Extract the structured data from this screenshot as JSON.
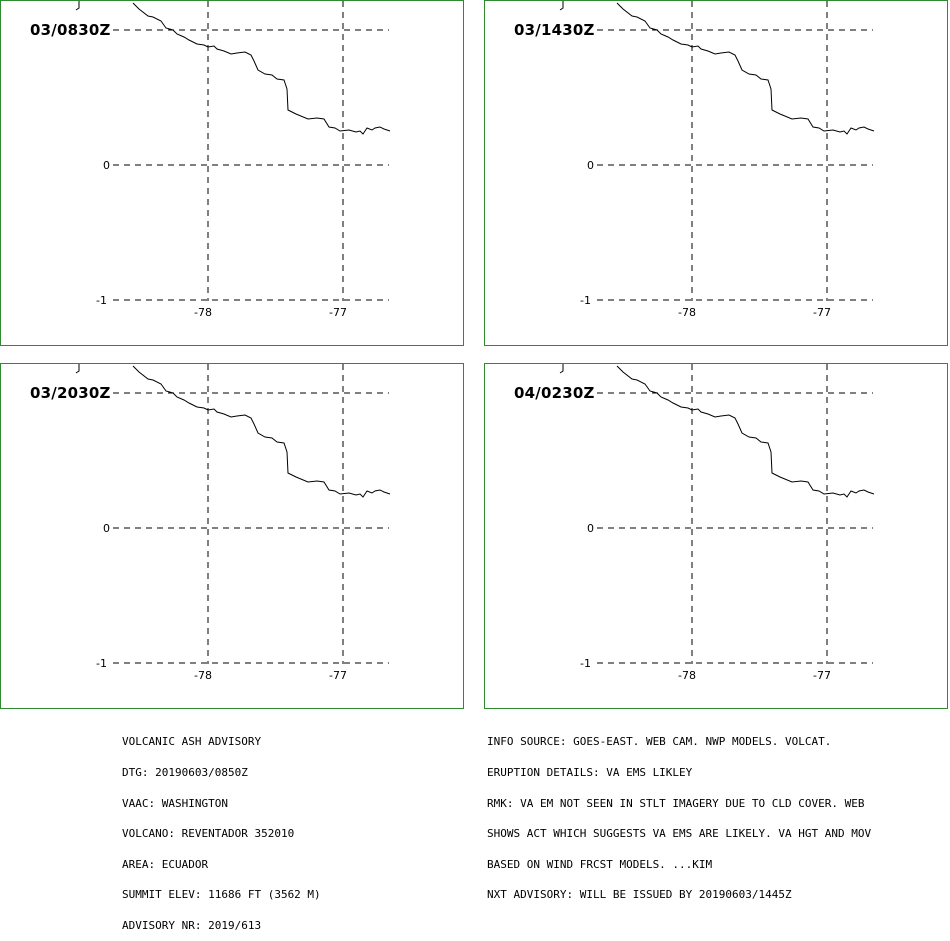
{
  "panels": [
    {
      "valid_time": "03/0830Z",
      "lat_labels": [
        "0",
        "-1"
      ],
      "lon_labels": [
        "-78",
        "-77"
      ]
    },
    {
      "valid_time": "03/1430Z",
      "lat_labels": [
        "0",
        "-1"
      ],
      "lon_labels": [
        "-78",
        "-77"
      ]
    },
    {
      "valid_time": "03/2030Z",
      "lat_labels": [
        "0",
        "-1"
      ],
      "lon_labels": [
        "-78",
        "-77"
      ]
    },
    {
      "valid_time": "04/0230Z",
      "lat_labels": [
        "0",
        "-1"
      ],
      "lon_labels": [
        "-78",
        "-77"
      ]
    }
  ],
  "map": {
    "graticule_lat": [
      1,
      0,
      -1
    ],
    "graticule_lon": [
      -78,
      -77
    ],
    "coastline_color": "#000000",
    "frame_color": "#2e8b2e"
  },
  "advisory_left": [
    "VOLCANIC ASH ADVISORY",
    "DTG: 20190603/0850Z",
    "VAAC: WASHINGTON",
    "VOLCANO: REVENTADOR 352010",
    "AREA: ECUADOR",
    "SUMMIT ELEV: 11686 FT (3562 M)",
    "ADVISORY NR: 2019/613"
  ],
  "advisory_right": [
    "INFO SOURCE: GOES-EAST. WEB CAM. NWP MODELS. VOLCAT.",
    "ERUPTION DETAILS: VA EMS LIKLEY",
    "RMK: VA EM NOT SEEN IN STLT IMAGERY DUE TO CLD COVER. WEB",
    "SHOWS ACT WHICH SUGGESTS VA EMS ARE LIKELY. VA HGT AND MOV",
    "BASED ON WIND FRCST MODELS. ...KIM",
    "NXT ADVISORY: WILL BE ISSUED BY 20190603/1445Z"
  ]
}
